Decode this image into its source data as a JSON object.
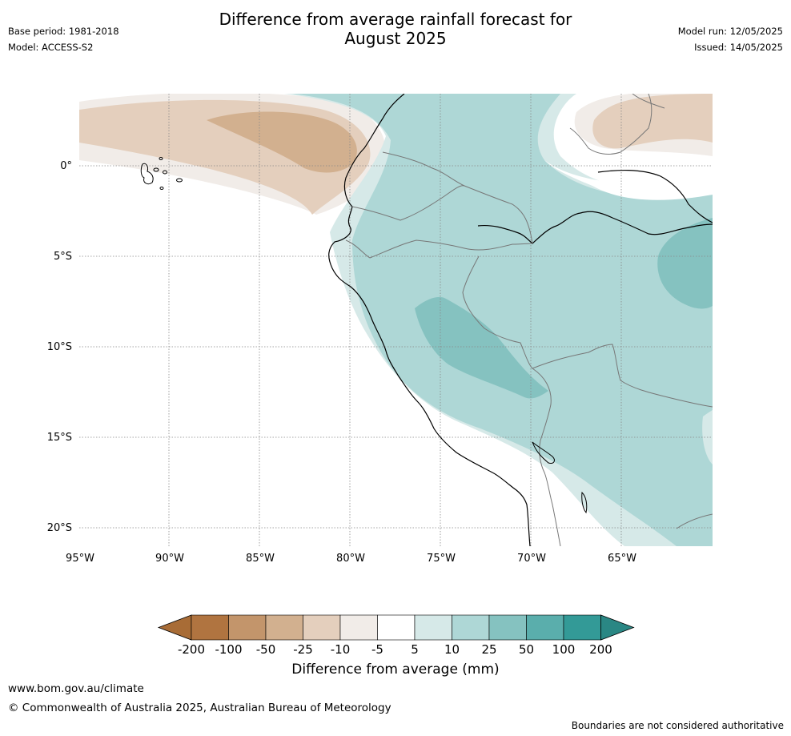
{
  "header": {
    "title_line1": "Difference from average rainfall forecast for",
    "title_line2": "August 2025",
    "base_period": "Base period: 1981-2018",
    "model": "Model: ACCESS-S2",
    "model_run": "Model run: 12/05/2025",
    "issued": "Issued: 14/05/2025"
  },
  "map": {
    "lat_labels": [
      "0°",
      "5°S",
      "10°S",
      "15°S",
      "20°S"
    ],
    "lon_labels": [
      "95°W",
      "90°W",
      "85°W",
      "80°W",
      "75°W",
      "70°W",
      "65°W"
    ]
  },
  "colorbar": {
    "title": "Difference from average (mm)",
    "tick_labels": [
      "-200",
      "-100",
      "-50",
      "-25",
      "-10",
      "-5",
      "5",
      "10",
      "25",
      "50",
      "100",
      "200"
    ],
    "colors": [
      "#a86c36",
      "#b07440",
      "#c3956b",
      "#d2b08f",
      "#e4cfbd",
      "#f1ece8",
      "#ffffff",
      "#d6e9e8",
      "#aed7d6",
      "#85c2c0",
      "#5aaeac",
      "#339a97",
      "#2a8784"
    ]
  },
  "footer": {
    "url": "www.bom.gov.au/climate",
    "copyright": "© Commonwealth of Australia 2025, Australian Bureau of Meteorology",
    "note": "Boundaries are not considered authoritative"
  }
}
